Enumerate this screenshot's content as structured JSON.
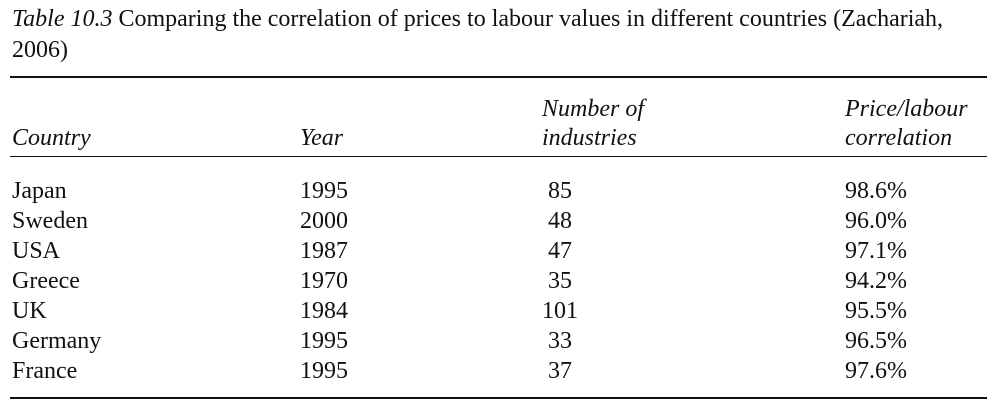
{
  "caption": {
    "label": "Table 10.3",
    "text": "Comparing the correlation of prices to labour values in different countries (Zachariah, 2006)"
  },
  "table": {
    "headers": {
      "country": "Country",
      "year": "Year",
      "industries_line1": "Number of",
      "industries_line2": "industries",
      "correlation_line1": "Price/labour",
      "correlation_line2": "correlation"
    },
    "rows": [
      {
        "country": "Japan",
        "year": "1995",
        "industries": "85",
        "correlation": "98.6%"
      },
      {
        "country": "Sweden",
        "year": "2000",
        "industries": "48",
        "correlation": "96.0%"
      },
      {
        "country": "USA",
        "year": "1987",
        "industries": "47",
        "correlation": "97.1%"
      },
      {
        "country": "Greece",
        "year": "1970",
        "industries": "35",
        "correlation": "94.2%"
      },
      {
        "country": "UK",
        "year": "1984",
        "industries": "101",
        "correlation": "95.5%"
      },
      {
        "country": "Germany",
        "year": "1995",
        "industries": "33",
        "correlation": "96.5%"
      },
      {
        "country": "France",
        "year": "1995",
        "industries": "37",
        "correlation": "97.6%"
      }
    ]
  }
}
